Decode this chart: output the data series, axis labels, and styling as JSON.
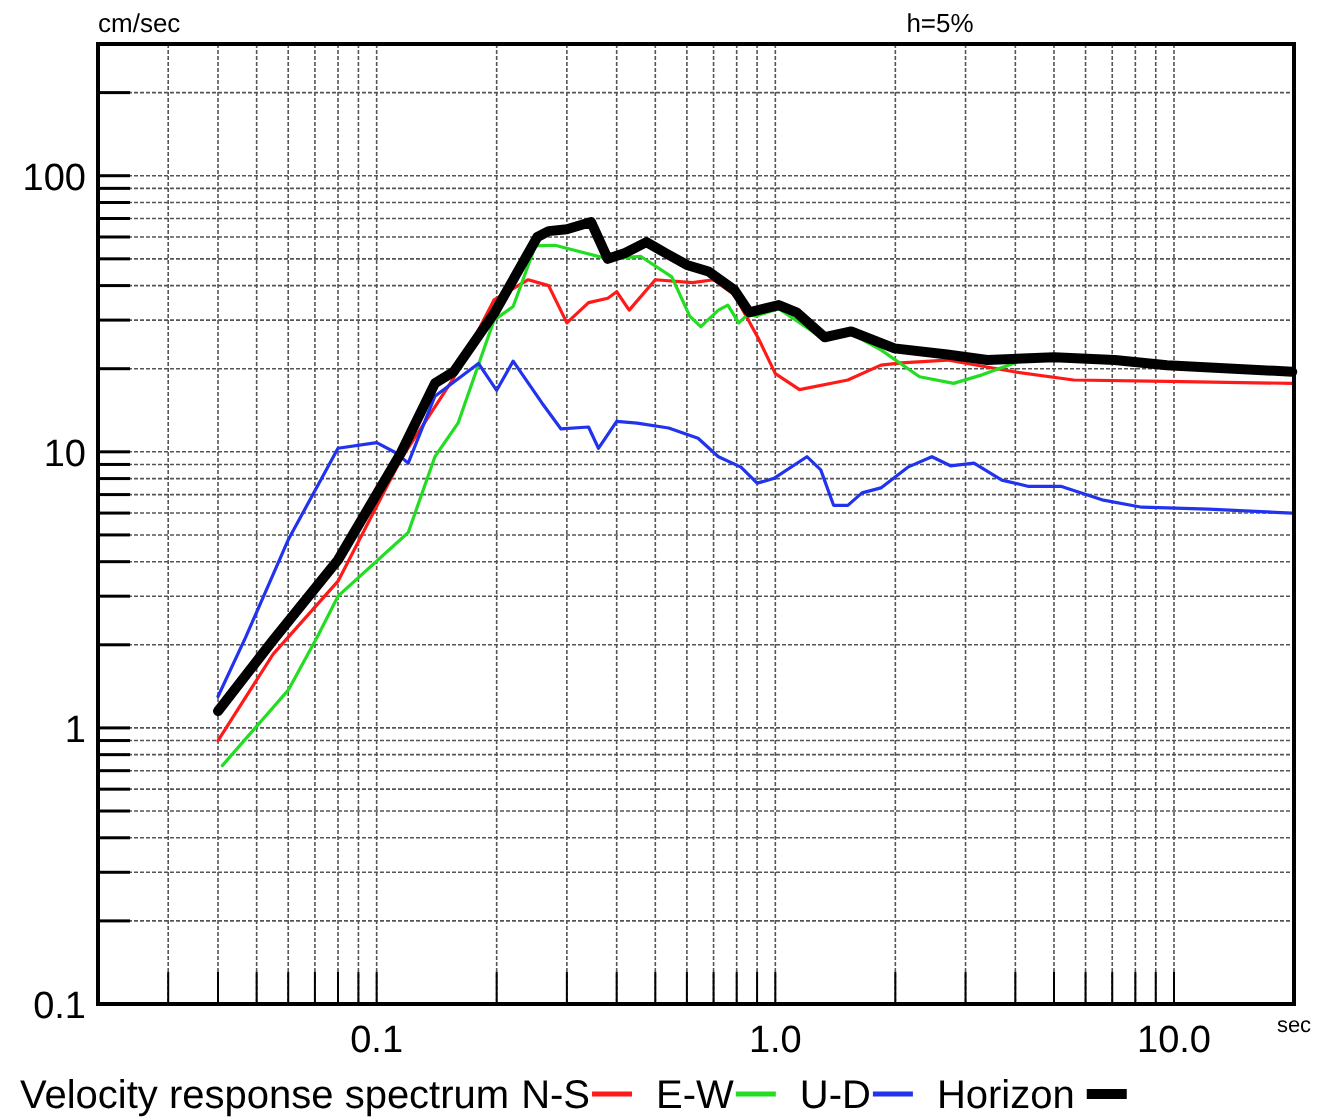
{
  "chart_data": {
    "type": "line",
    "ylabel": "cm/sec",
    "xlabel": "sec",
    "annotations": [
      "h=5%"
    ],
    "legend_title": "Velocity response spectrum",
    "legend": "bottom",
    "log": "xy",
    "grid": true,
    "line_style": "solid",
    "xlim": [
      0.02,
      20
    ],
    "ylim": [
      0.1,
      300
    ],
    "xticks": [
      {
        "value": 0.03,
        "label": null
      },
      {
        "value": 0.04,
        "label": null
      },
      {
        "value": 0.05,
        "label": null
      },
      {
        "value": 0.06,
        "label": null
      },
      {
        "value": 0.07,
        "label": null
      },
      {
        "value": 0.08,
        "label": null
      },
      {
        "value": 0.09,
        "label": null
      },
      {
        "value": 0.1,
        "label": "0.1"
      },
      {
        "value": 0.2,
        "label": null
      },
      {
        "value": 0.3,
        "label": null
      },
      {
        "value": 0.4,
        "label": null
      },
      {
        "value": 0.5,
        "label": null
      },
      {
        "value": 0.6,
        "label": null
      },
      {
        "value": 0.7,
        "label": null
      },
      {
        "value": 0.8,
        "label": null
      },
      {
        "value": 0.9,
        "label": null
      },
      {
        "value": 1,
        "label": "1.0"
      },
      {
        "value": 2,
        "label": null
      },
      {
        "value": 3,
        "label": null
      },
      {
        "value": 4,
        "label": null
      },
      {
        "value": 5,
        "label": null
      },
      {
        "value": 6,
        "label": null
      },
      {
        "value": 7,
        "label": null
      },
      {
        "value": 8,
        "label": null
      },
      {
        "value": 9,
        "label": null
      },
      {
        "value": 10,
        "label": "10.0"
      }
    ],
    "yticks": [
      0.1,
      {
        "value": 0.2,
        "label": null
      },
      {
        "value": 0.3,
        "label": null
      },
      {
        "value": 0.4,
        "label": null
      },
      {
        "value": 0.5,
        "label": null
      },
      {
        "value": 0.6,
        "label": null
      },
      {
        "value": 0.7,
        "label": null
      },
      {
        "value": 0.8,
        "label": null
      },
      {
        "value": 0.9,
        "label": null
      },
      1,
      {
        "value": 2,
        "label": null
      },
      {
        "value": 3,
        "label": null
      },
      {
        "value": 4,
        "label": null
      },
      {
        "value": 5,
        "label": null
      },
      {
        "value": 6,
        "label": null
      },
      {
        "value": 7,
        "label": null
      },
      {
        "value": 8,
        "label": null
      },
      {
        "value": 9,
        "label": null
      },
      10,
      {
        "value": 20,
        "label": null
      },
      {
        "value": 30,
        "label": null
      },
      {
        "value": 40,
        "label": null
      },
      {
        "value": 50,
        "label": null
      },
      {
        "value": 60,
        "label": null
      },
      {
        "value": 70,
        "label": null
      },
      {
        "value": 80,
        "label": null
      },
      {
        "value": 90,
        "label": null
      },
      100,
      {
        "value": 200,
        "label": null
      }
    ],
    "series": [
      {
        "name": "N-S",
        "color": "#ff1a1a",
        "x": [
          0.04,
          0.055,
          0.08,
          0.115,
          0.156,
          0.197,
          0.24,
          0.27,
          0.3,
          0.34,
          0.38,
          0.4,
          0.43,
          0.5,
          0.62,
          0.7,
          0.79,
          0.91,
          1.0,
          1.15,
          1.52,
          1.84,
          2.07,
          2.7,
          3.97,
          5.6,
          9.6,
          19.8
        ],
        "values": [
          0.9,
          1.85,
          3.4,
          9.4,
          18.5,
          35.5,
          42,
          40,
          29.3,
          34.7,
          36,
          38,
          32.6,
          42,
          41,
          42,
          37,
          25.5,
          19.2,
          16.8,
          18.2,
          20.6,
          21,
          21.5,
          19.5,
          18.2,
          18,
          17.7
        ]
      },
      {
        "name": "E-W",
        "color": "#22dd22",
        "x": [
          0.041,
          0.06,
          0.071,
          0.08,
          0.12,
          0.14,
          0.16,
          0.197,
          0.22,
          0.25,
          0.28,
          0.38,
          0.46,
          0.55,
          0.61,
          0.65,
          0.72,
          0.76,
          0.81,
          0.86,
          0.89,
          1.02,
          1.33,
          1.55,
          1.84,
          2.3,
          2.8,
          3.3,
          4.0
        ],
        "values": [
          0.73,
          1.37,
          2.14,
          3.0,
          5.1,
          9.6,
          12.7,
          30,
          33.6,
          55.7,
          56,
          50,
          51,
          43,
          31,
          28.4,
          32.6,
          34,
          29.3,
          31.8,
          31,
          33,
          25.5,
          26.8,
          23.4,
          18.7,
          17.7,
          19,
          21
        ]
      },
      {
        "name": "U-D",
        "color": "#2233ee",
        "x": [
          0.04,
          0.047,
          0.06,
          0.08,
          0.1,
          0.112,
          0.12,
          0.14,
          0.18,
          0.2,
          0.22,
          0.26,
          0.29,
          0.34,
          0.36,
          0.4,
          0.45,
          0.54,
          0.64,
          0.72,
          0.82,
          0.9,
          0.99,
          1.2,
          1.3,
          1.4,
          1.52,
          1.65,
          1.84,
          2.15,
          2.47,
          2.75,
          3.15,
          3.7,
          4.3,
          5.2,
          6.6,
          8.3,
          12.2,
          19.8
        ],
        "values": [
          1.3,
          2.14,
          4.8,
          10.3,
          10.8,
          9.9,
          9.1,
          15.9,
          20.9,
          16.7,
          21.3,
          15,
          12.1,
          12.3,
          10.3,
          12.9,
          12.7,
          12.2,
          11.2,
          9.6,
          8.8,
          7.7,
          8,
          9.6,
          8.6,
          6.4,
          6.4,
          7.1,
          7.4,
          8.8,
          9.6,
          8.9,
          9.1,
          7.9,
          7.5,
          7.5,
          6.7,
          6.3,
          6.2,
          6.0
        ]
      },
      {
        "name": "Horizon",
        "color": "#000000",
        "x": [
          0.04,
          0.055,
          0.08,
          0.115,
          0.14,
          0.156,
          0.197,
          0.253,
          0.27,
          0.3,
          0.345,
          0.38,
          0.42,
          0.475,
          0.53,
          0.6,
          0.68,
          0.79,
          0.86,
          1.02,
          1.13,
          1.33,
          1.55,
          1.99,
          2.7,
          3.4,
          5.0,
          7.1,
          9.6,
          19.8
        ],
        "values": [
          1.15,
          2.08,
          4.06,
          9.9,
          17.7,
          19.5,
          31.7,
          60,
          63,
          64,
          68,
          50,
          52.5,
          57.5,
          52.5,
          47.5,
          45,
          38.5,
          32,
          34,
          32,
          26,
          27.3,
          23.7,
          22.5,
          21.5,
          22,
          21.5,
          20.6,
          19.5
        ]
      }
    ]
  }
}
